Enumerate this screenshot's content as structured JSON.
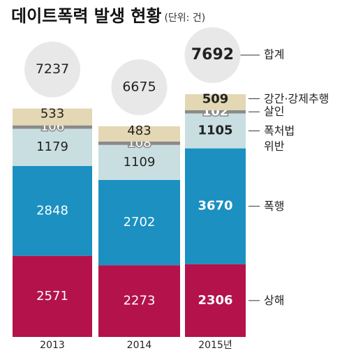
{
  "chart_data": {
    "type": "bar",
    "stacked": true,
    "title": "데이트폭력 발생 현황",
    "subtitle": "(단위: 건)",
    "categories": [
      "2013",
      "2014",
      "2015년"
    ],
    "series": [
      {
        "name": "상해",
        "color": "#b3124b",
        "values": [
          2571,
          2273,
          2306
        ]
      },
      {
        "name": "폭행",
        "color": "#1b90c1",
        "values": [
          2848,
          2702,
          3670
        ]
      },
      {
        "name": "폭처법 위반",
        "color": "#c9dee1",
        "values": [
          1179,
          1109,
          1105
        ]
      },
      {
        "name": "살인",
        "color": "#8a8a8a",
        "values": [
          106,
          108,
          102
        ]
      },
      {
        "name": "강간·강제추행",
        "color": "#e4d7b4",
        "values": [
          533,
          483,
          509
        ]
      }
    ],
    "total_label": "합계",
    "totals": [
      7237,
      6675,
      7692
    ]
  }
}
